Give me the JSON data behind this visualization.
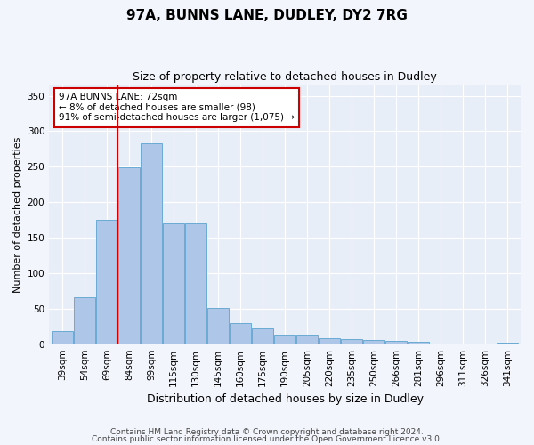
{
  "title1": "97A, BUNNS LANE, DUDLEY, DY2 7RG",
  "title2": "Size of property relative to detached houses in Dudley",
  "xlabel": "Distribution of detached houses by size in Dudley",
  "ylabel": "Number of detached properties",
  "categories": [
    "39sqm",
    "54sqm",
    "69sqm",
    "84sqm",
    "99sqm",
    "115sqm",
    "130sqm",
    "145sqm",
    "160sqm",
    "175sqm",
    "190sqm",
    "205sqm",
    "220sqm",
    "235sqm",
    "250sqm",
    "266sqm",
    "281sqm",
    "296sqm",
    "311sqm",
    "326sqm",
    "341sqm"
  ],
  "values": [
    18,
    66,
    175,
    249,
    283,
    170,
    170,
    51,
    30,
    22,
    14,
    14,
    8,
    7,
    6,
    5,
    3,
    1,
    0,
    1,
    2
  ],
  "bar_color": "#aec6e8",
  "bar_edge_color": "#6aaad4",
  "vline_color": "#cc0000",
  "vline_x": 2.48,
  "annotation_text": "97A BUNNS LANE: 72sqm\n← 8% of detached houses are smaller (98)\n91% of semi-detached houses are larger (1,075) →",
  "annotation_box_color": "#ffffff",
  "annotation_box_edge": "#cc0000",
  "ylim": [
    0,
    365
  ],
  "yticks": [
    0,
    50,
    100,
    150,
    200,
    250,
    300,
    350
  ],
  "footer1": "Contains HM Land Registry data © Crown copyright and database right 2024.",
  "footer2": "Contains public sector information licensed under the Open Government Licence v3.0.",
  "bg_color": "#f2f5fb",
  "plot_bg_color": "#e8eef8",
  "grid_color": "#ffffff",
  "title1_fontsize": 11,
  "title2_fontsize": 9,
  "ylabel_fontsize": 8,
  "xlabel_fontsize": 9,
  "tick_fontsize": 7.5,
  "footer_fontsize": 6.5
}
